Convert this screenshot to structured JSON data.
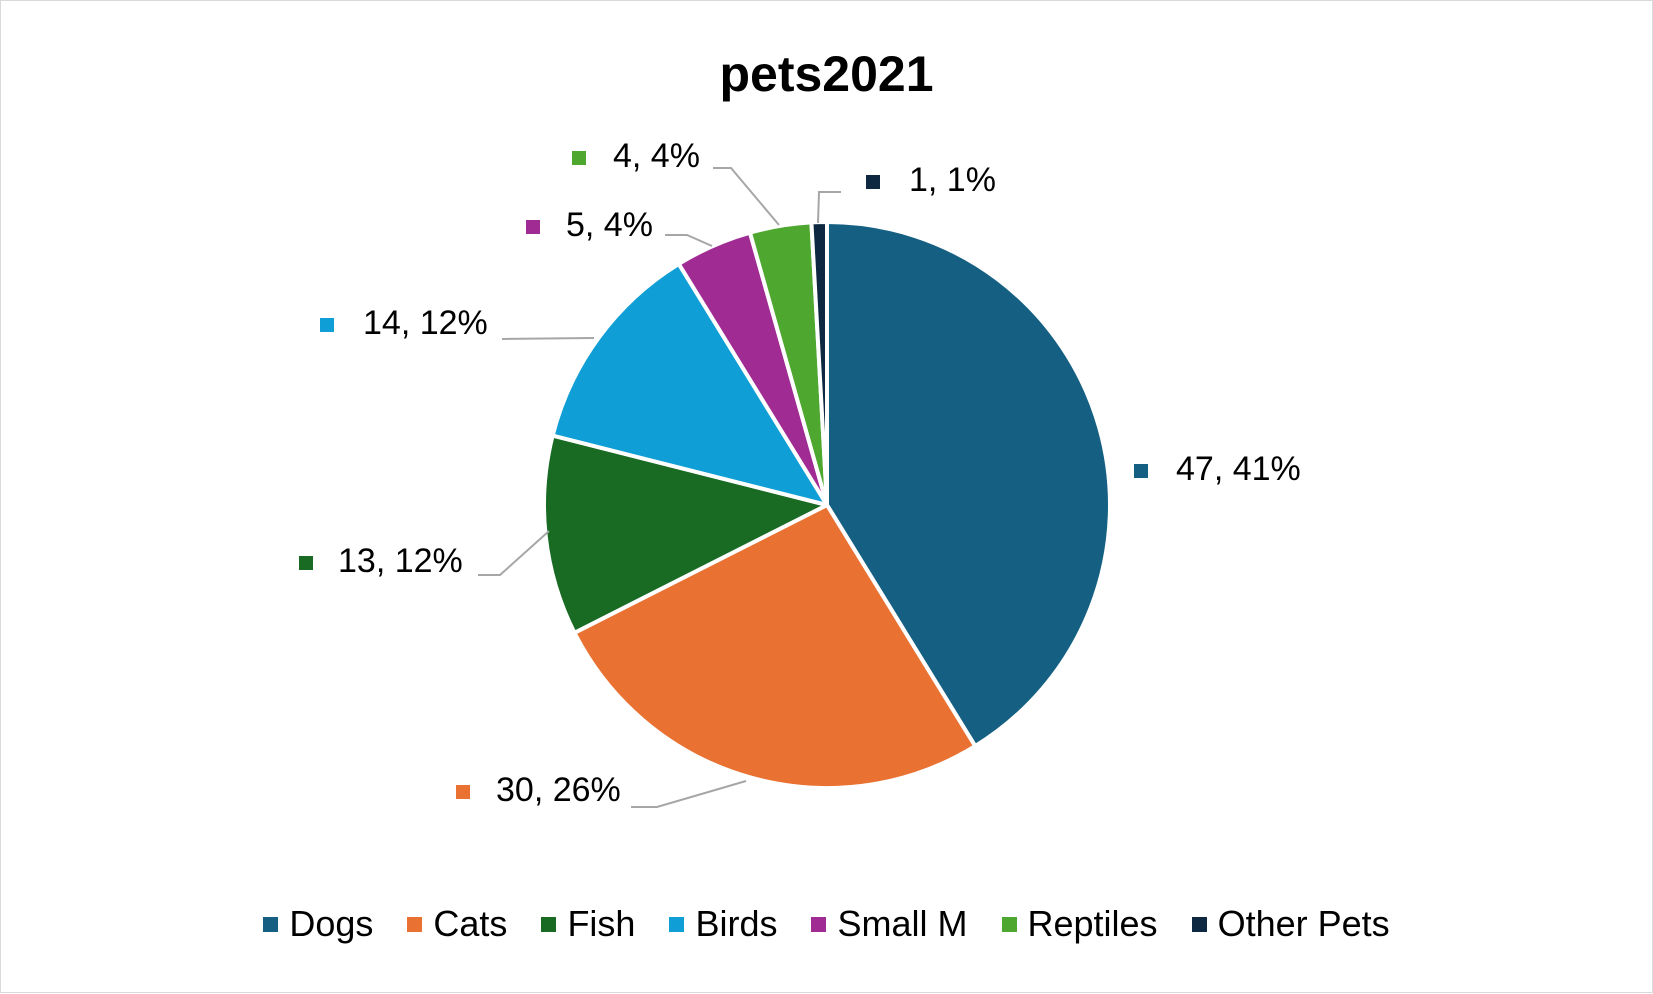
{
  "chart_data": {
    "type": "pie",
    "title": "pets2021",
    "categories": [
      "Dogs",
      "Cats",
      "Fish",
      "Birds",
      "Small M",
      "Reptiles",
      "Other Pets"
    ],
    "values": [
      47,
      30,
      13,
      14,
      5,
      4,
      1
    ],
    "data_labels": [
      "47, 41%",
      "30, 26%",
      "13, 12%",
      "14, 12%",
      "5, 4%",
      "4, 4%",
      "1, 1%"
    ],
    "colors": [
      "#156082",
      "#E97132",
      "#196B24",
      "#0F9ED5",
      "#A02B93",
      "#4EA72E",
      "#0E2841"
    ],
    "legend_position": "bottom",
    "start_angle_deg": 0,
    "direction": "clockwise"
  }
}
